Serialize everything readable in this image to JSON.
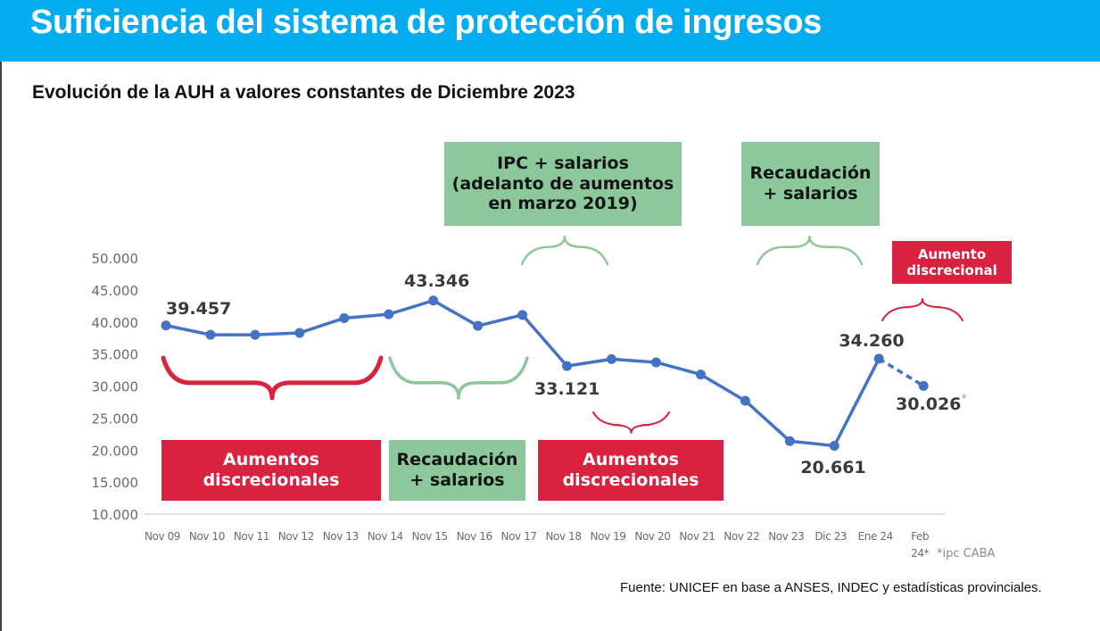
{
  "header": {
    "title": "Suficiencia del sistema de protección de ingresos"
  },
  "subtitle": "Evolución de la AUH a valores constantes de Diciembre 2023",
  "colors": {
    "header_bg": "#03adef",
    "line": "#4472c4",
    "red": "#d9223f",
    "green": "#8cc89c"
  },
  "annotations": {
    "boxes": [
      {
        "id": "aumentos-1",
        "color": "red",
        "lines": [
          "Aumentos",
          "discrecionales"
        ]
      },
      {
        "id": "recaudacion-1",
        "color": "green",
        "lines": [
          "Recaudación",
          "+ salarios"
        ]
      },
      {
        "id": "aumentos-2",
        "color": "red",
        "lines": [
          "Aumentos",
          "discrecionales"
        ]
      },
      {
        "id": "ipc-salarios",
        "color": "green",
        "lines": [
          "IPC + salarios",
          "(adelanto de aumentos",
          "en marzo 2019)"
        ]
      },
      {
        "id": "recaudacion-2",
        "color": "green",
        "lines": [
          "Recaudación",
          "+ salarios"
        ]
      },
      {
        "id": "aumento-discrecional",
        "color": "red",
        "lines": [
          "Aumento",
          "discrecional"
        ]
      }
    ]
  },
  "chart_data": {
    "type": "line",
    "title": "Evolución de la AUH a valores constantes de Diciembre 2023",
    "xlabel": "",
    "ylabel": "",
    "categories": [
      "Nov 09",
      "Nov 10",
      "Nov 11",
      "Nov 12",
      "Nov 13",
      "Nov 14",
      "Nov 15",
      "Nov 16",
      "Nov 17",
      "Nov 18",
      "Nov 19",
      "Nov 20",
      "Nov 21",
      "Nov 22",
      "Nov 23",
      "Dic 23",
      "Ene 24",
      "Feb 24*"
    ],
    "x_tick_labels": [
      "Nov 09",
      "Nov 10",
      "Nov 11",
      "Nov 12",
      "Nov 13",
      "Nov 14",
      "Nov 15",
      "Nov 16",
      "Nov 17",
      "Nov 18",
      "Nov 19",
      "Nov 20",
      "Nov 21",
      "Nov 22",
      "Nov 23",
      "Dic 23",
      "Ene 24",
      "Feb\n24*"
    ],
    "series": [
      {
        "name": "AUH (valores constantes dic 2023)",
        "values": [
          39457,
          38000,
          38000,
          38300,
          40600,
          41200,
          43346,
          39400,
          41100,
          33121,
          34200,
          33700,
          31800,
          27700,
          21400,
          20661,
          34260,
          30026
        ],
        "dashed_from_index": 16
      }
    ],
    "data_labels": [
      {
        "index": 0,
        "text": "39.457"
      },
      {
        "index": 6,
        "text": "43.346"
      },
      {
        "index": 9,
        "text": "33.121"
      },
      {
        "index": 15,
        "text": "20.661"
      },
      {
        "index": 16,
        "text": "34.260"
      },
      {
        "index": 17,
        "text": "30.026",
        "suffix": "*"
      }
    ],
    "ylim": [
      10000,
      50000
    ],
    "y_ticks": [
      10000,
      15000,
      20000,
      25000,
      30000,
      35000,
      40000,
      45000,
      50000
    ],
    "y_tick_labels": [
      "10.000",
      "15.000",
      "20.000",
      "25.000",
      "30.000",
      "35.000",
      "40.000",
      "45.000",
      "50.000"
    ],
    "grid": false,
    "note": "*ipc CABA"
  },
  "source": "Fuente: UNICEF en base a ANSES, INDEC y estadísticas provinciales."
}
